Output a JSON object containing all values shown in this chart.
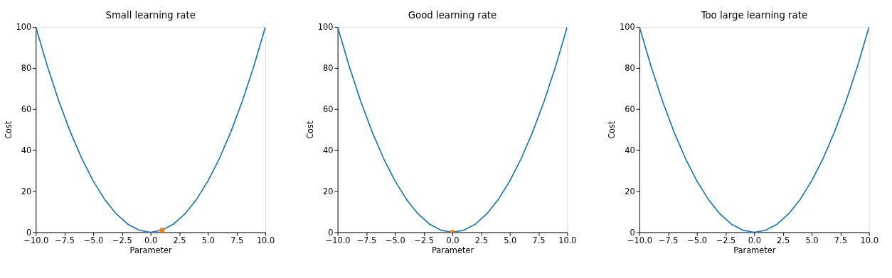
{
  "chart_data": [
    {
      "type": "line",
      "title": "Small learning rate",
      "xlabel": "Parameter",
      "ylabel": "Cost",
      "xlim": [
        -10,
        10
      ],
      "ylim": [
        0,
        100
      ],
      "xticks": [
        {
          "value": -10,
          "label": "−10.0"
        },
        {
          "value": -7.5,
          "label": "−7.5"
        },
        {
          "value": -5,
          "label": "−5.0"
        },
        {
          "value": -2.5,
          "label": "−2.5"
        },
        {
          "value": 0,
          "label": "0.0"
        },
        {
          "value": 2.5,
          "label": "2.5"
        },
        {
          "value": 5,
          "label": "5.0"
        },
        {
          "value": 7.5,
          "label": "7.5"
        },
        {
          "value": 10,
          "label": "10.0"
        }
      ],
      "yticks": [
        0,
        20,
        40,
        60,
        80,
        100
      ],
      "grid": false,
      "series": [
        {
          "color": "#1f77b4",
          "x": [
            -10,
            -9,
            -8,
            -7,
            -6,
            -5,
            -4,
            -3,
            -2,
            -1,
            0,
            1,
            2,
            3,
            4,
            5,
            6,
            7,
            8,
            9,
            10
          ],
          "values": [
            100,
            81,
            64,
            49,
            36,
            25,
            16,
            9,
            4,
            1,
            0,
            1,
            4,
            9,
            16,
            25,
            36,
            49,
            64,
            81,
            100
          ]
        },
        {
          "type": "scatter",
          "color": "#ff7f0e",
          "x": [
            1
          ],
          "values": [
            1
          ]
        }
      ]
    },
    {
      "type": "line",
      "title": "Good learning rate",
      "xlabel": "Parameter",
      "ylabel": "Cost",
      "xlim": [
        -10,
        10
      ],
      "ylim": [
        0,
        100
      ],
      "xticks": [
        {
          "value": -10,
          "label": "−10.0"
        },
        {
          "value": -7.5,
          "label": "−7.5"
        },
        {
          "value": -5,
          "label": "−5.0"
        },
        {
          "value": -2.5,
          "label": "−2.5"
        },
        {
          "value": 0,
          "label": "0.0"
        },
        {
          "value": 2.5,
          "label": "2.5"
        },
        {
          "value": 5,
          "label": "5.0"
        },
        {
          "value": 7.5,
          "label": "7.5"
        },
        {
          "value": 10,
          "label": "10.0"
        }
      ],
      "yticks": [
        0,
        20,
        40,
        60,
        80,
        100
      ],
      "grid": false,
      "series": [
        {
          "color": "#1f77b4",
          "x": [
            -10,
            -9,
            -8,
            -7,
            -6,
            -5,
            -4,
            -3,
            -2,
            -1,
            0,
            1,
            2,
            3,
            4,
            5,
            6,
            7,
            8,
            9,
            10
          ],
          "values": [
            100,
            81,
            64,
            49,
            36,
            25,
            16,
            9,
            4,
            1,
            0,
            1,
            4,
            9,
            16,
            25,
            36,
            49,
            64,
            81,
            100
          ]
        },
        {
          "type": "scatter",
          "color": "#ff7f0e",
          "x": [
            0
          ],
          "values": [
            0
          ]
        }
      ]
    },
    {
      "type": "line",
      "title": "Too large learning rate",
      "xlabel": "Parameter",
      "ylabel": "Cost",
      "xlim": [
        -10,
        10
      ],
      "ylim": [
        0,
        100
      ],
      "xticks": [
        {
          "value": -10,
          "label": "−10.0"
        },
        {
          "value": -7.5,
          "label": "−7.5"
        },
        {
          "value": -5,
          "label": "−5.0"
        },
        {
          "value": -2.5,
          "label": "−2.5"
        },
        {
          "value": 0,
          "label": "0.0"
        },
        {
          "value": 2.5,
          "label": "2.5"
        },
        {
          "value": 5,
          "label": "5.0"
        },
        {
          "value": 7.5,
          "label": "7.5"
        },
        {
          "value": 10,
          "label": "10.0"
        }
      ],
      "yticks": [
        0,
        20,
        40,
        60,
        80,
        100
      ],
      "grid": false,
      "series": [
        {
          "color": "#1f77b4",
          "x": [
            -10,
            -9,
            -8,
            -7,
            -6,
            -5,
            -4,
            -3,
            -2,
            -1,
            0,
            1,
            2,
            3,
            4,
            5,
            6,
            7,
            8,
            9,
            10
          ],
          "values": [
            100,
            81,
            64,
            49,
            36,
            25,
            16,
            9,
            4,
            1,
            0,
            1,
            4,
            9,
            16,
            25,
            36,
            49,
            64,
            81,
            100
          ]
        }
      ]
    }
  ]
}
